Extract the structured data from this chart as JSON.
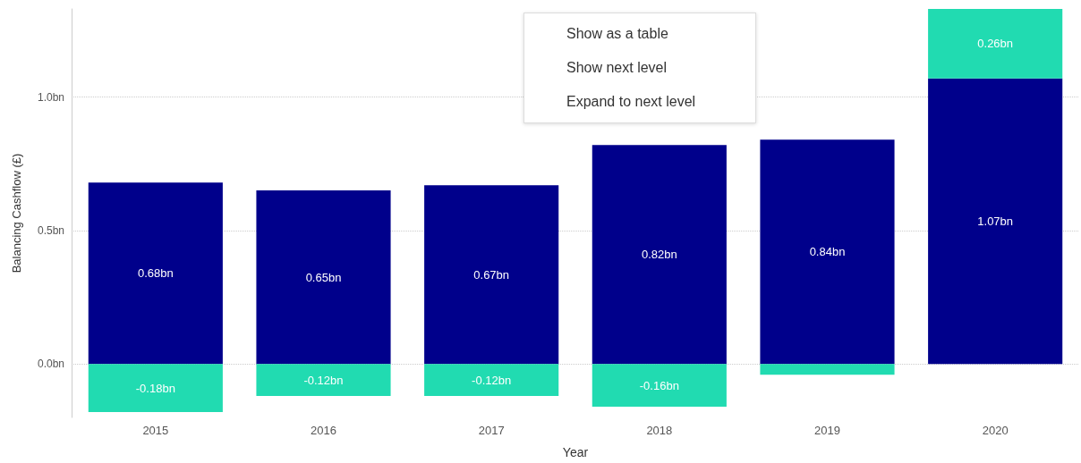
{
  "chart_data": {
    "type": "bar",
    "stacked": true,
    "xlabel": "Year",
    "ylabel": "Balancing Cashflow (£)",
    "categories": [
      "2015",
      "2016",
      "2017",
      "2018",
      "2019",
      "2020"
    ],
    "series": [
      {
        "color": "#00008b",
        "values": [
          0.68,
          0.65,
          0.67,
          0.82,
          0.84,
          1.07
        ],
        "value_labels": [
          "0.68bn",
          "0.65bn",
          "0.67bn",
          "0.82bn",
          "0.84bn",
          "1.07bn"
        ]
      },
      {
        "color": "#21dbb1",
        "values": [
          -0.18,
          -0.12,
          -0.12,
          -0.16,
          -0.04,
          0.26
        ],
        "value_labels": [
          "-0.18bn",
          "-0.12bn",
          "-0.12bn",
          "-0.16bn",
          null,
          "0.26bn"
        ]
      }
    ],
    "ylim": [
      -0.2,
      1.33
    ],
    "yticks": [
      {
        "value": 0,
        "label": "0.0bn"
      },
      {
        "value": 0.5,
        "label": "0.5bn"
      },
      {
        "value": 1,
        "label": "1.0bn"
      }
    ],
    "grid": "y",
    "annotations": [
      "Show as a table",
      "Show next level",
      "Expand to next level"
    ]
  }
}
